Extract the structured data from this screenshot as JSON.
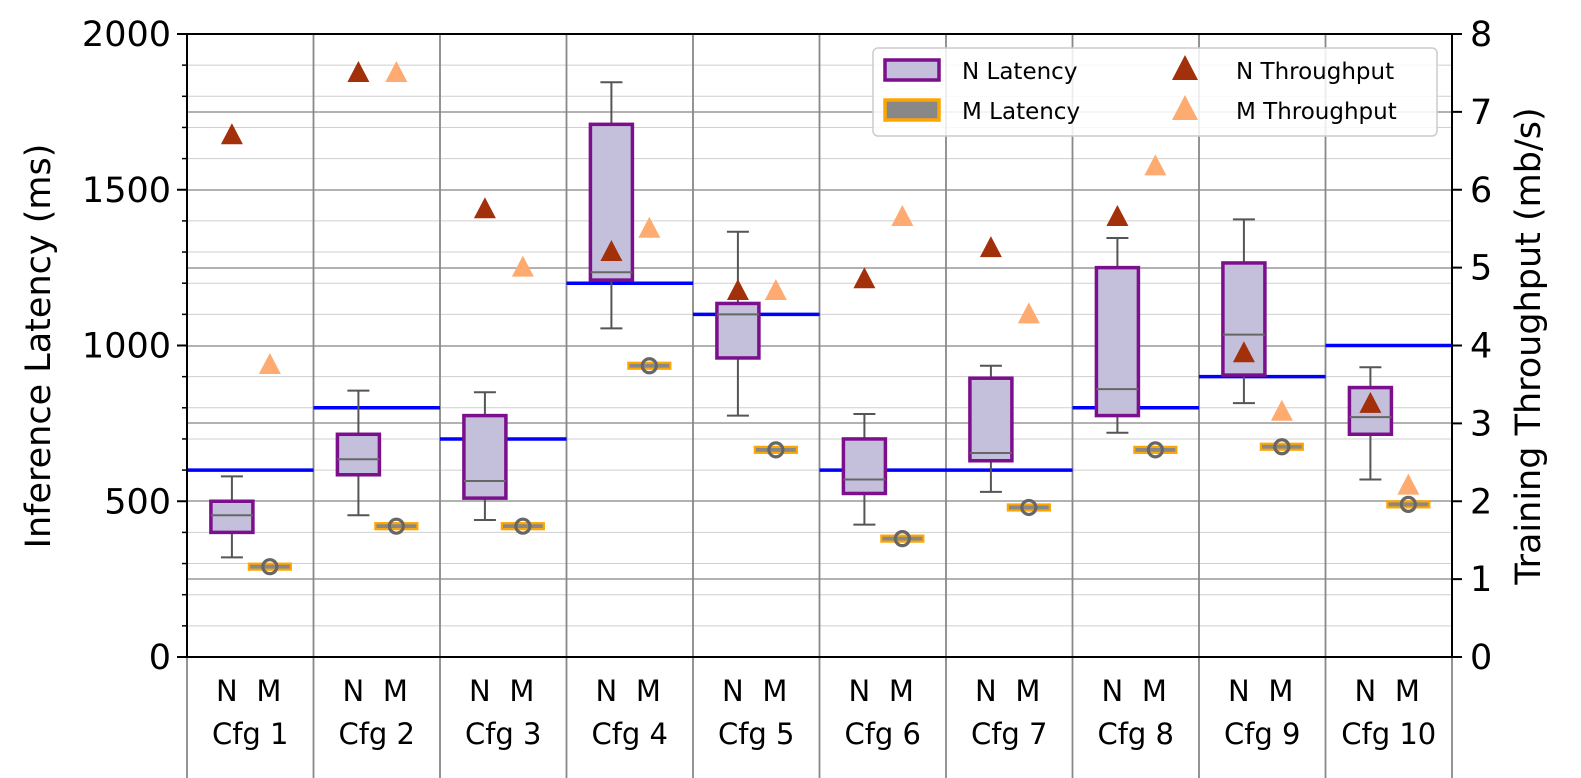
{
  "chart_data": {
    "type": "box",
    "y_left": {
      "label": "Inference Latency (ms)",
      "range": [
        0,
        2000
      ],
      "ticks": [
        0,
        500,
        1000,
        1500,
        2000
      ]
    },
    "y_right": {
      "label": "Training Throughput (mb/s)",
      "range": [
        0,
        8
      ],
      "ticks": [
        0,
        1,
        2,
        3,
        4,
        5,
        6,
        7,
        8
      ]
    },
    "grid": true,
    "legend": {
      "position": "top-right",
      "items": [
        {
          "label": "N Latency",
          "kind": "box",
          "fill": "#c4c0dc",
          "stroke": "#7b0f8c"
        },
        {
          "label": "M Latency",
          "kind": "box",
          "fill": "#888888",
          "stroke": "#ffa500"
        },
        {
          "label": "N Throughput",
          "kind": "triangle",
          "color": "#a2300a"
        },
        {
          "label": "M Throughput",
          "kind": "triangle",
          "color": "#fdab70"
        }
      ]
    },
    "colors": {
      "n_box_fill": "#c4c0dc",
      "n_box_edge": "#7b0f8c",
      "median": "#666666",
      "whisker": "#555555",
      "m_edge": "#ffa500",
      "m_marker": "#666666",
      "n_throughput": "#a2300a",
      "m_throughput": "#fdab70",
      "threshold": "#0000ff"
    },
    "groups": [
      {
        "config": "Cfg 1",
        "n_label": "N",
        "m_label": "M",
        "threshold": 600,
        "n_latency": {
          "whislo": 320,
          "q1": 400,
          "med": 455,
          "q3": 500,
          "whishi": 580
        },
        "m_latency": 290,
        "n_throughput": 6.7,
        "m_throughput": 3.75
      },
      {
        "config": "Cfg 2",
        "n_label": "N",
        "m_label": "M",
        "threshold": 800,
        "n_latency": {
          "whislo": 455,
          "q1": 585,
          "med": 635,
          "q3": 715,
          "whishi": 855
        },
        "m_latency": 420,
        "n_throughput": 7.5,
        "m_throughput": 7.5
      },
      {
        "config": "Cfg 3",
        "n_label": "N",
        "m_label": "M",
        "threshold": 700,
        "n_latency": {
          "whislo": 440,
          "q1": 510,
          "med": 565,
          "q3": 775,
          "whishi": 850
        },
        "m_latency": 420,
        "n_throughput": 5.75,
        "m_throughput": 5.0
      },
      {
        "config": "Cfg 4",
        "n_label": "N",
        "m_label": "M",
        "threshold": 1200,
        "n_latency": {
          "whislo": 1055,
          "q1": 1210,
          "med": 1235,
          "q3": 1710,
          "whishi": 1845
        },
        "m_latency": 935,
        "n_throughput": 5.2,
        "m_throughput": 5.5
      },
      {
        "config": "Cfg 5",
        "n_label": "N",
        "m_label": "M",
        "threshold": 1100,
        "n_latency": {
          "whislo": 775,
          "q1": 960,
          "med": 1100,
          "q3": 1135,
          "whishi": 1365
        },
        "m_latency": 665,
        "n_throughput": 4.7,
        "m_throughput": 4.7
      },
      {
        "config": "Cfg 6",
        "n_label": "N",
        "m_label": "M",
        "threshold": 600,
        "n_latency": {
          "whislo": 425,
          "q1": 525,
          "med": 570,
          "q3": 700,
          "whishi": 780
        },
        "m_latency": 380,
        "n_throughput": 4.85,
        "m_throughput": 5.65
      },
      {
        "config": "Cfg 7",
        "n_label": "N",
        "m_label": "M",
        "threshold": 600,
        "n_latency": {
          "whislo": 530,
          "q1": 630,
          "med": 655,
          "q3": 895,
          "whishi": 935
        },
        "m_latency": 480,
        "n_throughput": 5.25,
        "m_throughput": 4.4
      },
      {
        "config": "Cfg 8",
        "n_label": "N",
        "m_label": "M",
        "threshold": 800,
        "n_latency": {
          "whislo": 720,
          "q1": 775,
          "med": 860,
          "q3": 1250,
          "whishi": 1345
        },
        "m_latency": 665,
        "n_throughput": 5.65,
        "m_throughput": 6.3
      },
      {
        "config": "Cfg 9",
        "n_label": "N",
        "m_label": "M",
        "threshold": 900,
        "n_latency": {
          "whislo": 815,
          "q1": 905,
          "med": 1035,
          "q3": 1265,
          "whishi": 1405
        },
        "m_latency": 675,
        "n_throughput": 3.9,
        "m_throughput": 3.15
      },
      {
        "config": "Cfg 10",
        "n_label": "N",
        "m_label": "M",
        "threshold": 1000,
        "n_latency": {
          "whislo": 570,
          "q1": 715,
          "med": 770,
          "q3": 865,
          "whishi": 930
        },
        "m_latency": 490,
        "n_throughput": 3.25,
        "m_throughput": 2.2
      }
    ]
  }
}
